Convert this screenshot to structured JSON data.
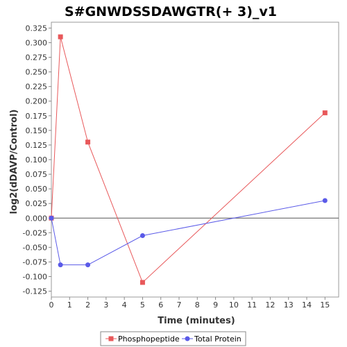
{
  "chart_data": {
    "type": "line",
    "title": "S#GNWDSSDAWGTR(+ 3)_v1",
    "xlabel": "Time (minutes)",
    "ylabel": "log2(dDAVP/Control)",
    "xlim": [
      0,
      15.75
    ],
    "ylim": [
      -0.135,
      0.335
    ],
    "x_ticks": [
      0,
      1,
      2,
      3,
      4,
      5,
      6,
      7,
      8,
      9,
      10,
      11,
      12,
      13,
      14,
      15
    ],
    "y_ticks": [
      -0.125,
      -0.1,
      -0.075,
      -0.05,
      -0.025,
      0.0,
      0.025,
      0.05,
      0.075,
      0.1,
      0.125,
      0.15,
      0.175,
      0.2,
      0.225,
      0.25,
      0.275,
      0.3,
      0.325
    ],
    "y_tick_labels": [
      "-0.125",
      "-0.100",
      "-0.075",
      "-0.050",
      "-0.025",
      "0.000",
      "0.025",
      "0.050",
      "0.075",
      "0.100",
      "0.125",
      "0.150",
      "0.175",
      "0.200",
      "0.225",
      "0.250",
      "0.275",
      "0.300",
      "0.325"
    ],
    "zero_line": true,
    "grid": false,
    "legend_position": "bottom-center",
    "series": [
      {
        "name": "Phosphopeptide",
        "color": "#e8585a",
        "marker": "square",
        "x": [
          0,
          0.5,
          2,
          5,
          15
        ],
        "y": [
          0.0,
          0.31,
          0.13,
          -0.11,
          0.18
        ]
      },
      {
        "name": "Total Protein",
        "color": "#5a5ae8",
        "marker": "circle",
        "x": [
          0,
          0.5,
          2,
          5,
          15
        ],
        "y": [
          0.0,
          -0.08,
          -0.08,
          -0.03,
          0.03
        ]
      }
    ]
  }
}
